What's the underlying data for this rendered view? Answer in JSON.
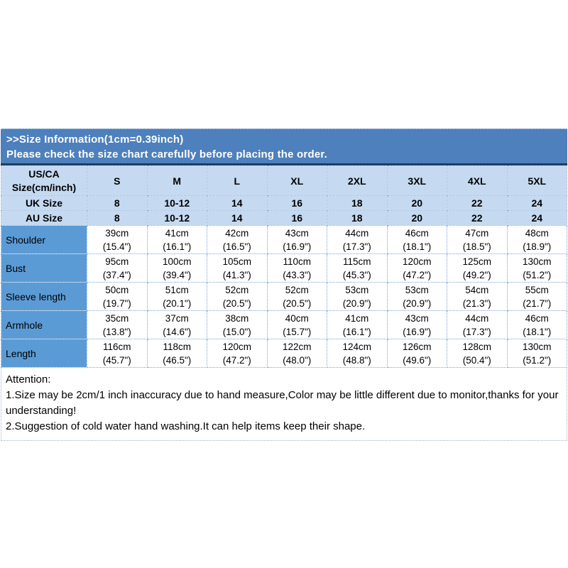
{
  "banner": {
    "line1": ">>Size Information(1cm=0.39inch)",
    "line2": "Please check the size chart carefully before placing the order."
  },
  "size_chart": {
    "header_rows": [
      {
        "label_lines": [
          "US/CA",
          "Size(cm/inch)"
        ],
        "values": [
          "S",
          "M",
          "L",
          "XL",
          "2XL",
          "3XL",
          "4XL",
          "5XL"
        ]
      },
      {
        "label_lines": [
          "UK Size"
        ],
        "values": [
          "8",
          "10-12",
          "14",
          "16",
          "18",
          "20",
          "22",
          "24"
        ]
      },
      {
        "label_lines": [
          "AU Size"
        ],
        "values": [
          "8",
          "10-12",
          "14",
          "16",
          "18",
          "20",
          "22",
          "24"
        ]
      }
    ],
    "measurement_rows": [
      {
        "label": "Shoulder",
        "values": [
          [
            "39cm",
            "(15.4\")"
          ],
          [
            "41cm",
            "(16.1\")"
          ],
          [
            "42cm",
            "(16.5\")"
          ],
          [
            "43cm",
            "(16.9\")"
          ],
          [
            "44cm",
            "(17.3\")"
          ],
          [
            "46cm",
            "(18.1\")"
          ],
          [
            "47cm",
            "(18.5\")"
          ],
          [
            "48cm",
            "(18.9\")"
          ]
        ]
      },
      {
        "label": "Bust",
        "values": [
          [
            "95cm",
            "(37.4\")"
          ],
          [
            "100cm",
            "(39.4\")"
          ],
          [
            "105cm",
            "(41.3\")"
          ],
          [
            "110cm",
            "(43.3\")"
          ],
          [
            "115cm",
            "(45.3\")"
          ],
          [
            "120cm",
            "(47.2\")"
          ],
          [
            "125cm",
            "(49.2\")"
          ],
          [
            "130cm",
            "(51.2\")"
          ]
        ]
      },
      {
        "label": "Sleeve length",
        "values": [
          [
            "50cm",
            "(19.7\")"
          ],
          [
            "51cm",
            "(20.1\")"
          ],
          [
            "52cm",
            "(20.5\")"
          ],
          [
            "52cm",
            "(20.5\")"
          ],
          [
            "53cm",
            "(20.9\")"
          ],
          [
            "53cm",
            "(20.9\")"
          ],
          [
            "54cm",
            "(21.3\")"
          ],
          [
            "55cm",
            "(21.7\")"
          ]
        ]
      },
      {
        "label": "Armhole",
        "values": [
          [
            "35cm",
            "(13.8\")"
          ],
          [
            "37cm",
            "(14.6\")"
          ],
          [
            "38cm",
            "(15.0\")"
          ],
          [
            "40cm",
            "(15.7\")"
          ],
          [
            "41cm",
            "(16.1\")"
          ],
          [
            "43cm",
            "(16.9\")"
          ],
          [
            "44cm",
            "(17.3\")"
          ],
          [
            "46cm",
            "(18.1\")"
          ]
        ]
      },
      {
        "label": "Length",
        "values": [
          [
            "116cm",
            "(45.7\")"
          ],
          [
            "118cm",
            "(46.5\")"
          ],
          [
            "120cm",
            "(47.2\")"
          ],
          [
            "122cm",
            "(48.0\")"
          ],
          [
            "124cm",
            "(48.8\")"
          ],
          [
            "126cm",
            "(49.6\")"
          ],
          [
            "128cm",
            "(50.4\")"
          ],
          [
            "130cm",
            "(51.2\")"
          ]
        ]
      }
    ]
  },
  "attention": {
    "title": "Attention:",
    "notes": [
      "1.Size may be 2cm/1 inch inaccuracy due to hand measure,Color may be little different due to monitor,thanks for your understanding!",
      "2.Suggestion of cold water hand washing.It can help items keep their shape."
    ]
  },
  "colors": {
    "banner_bg": "#4d80bc",
    "banner_text": "#ffffff",
    "divider_navy": "#1d3d63",
    "header_row_bg": "#c5d9f1",
    "label_column_bg": "#5b9bd5",
    "grid_dotted": "#7aa3d4",
    "text": "#000000"
  }
}
